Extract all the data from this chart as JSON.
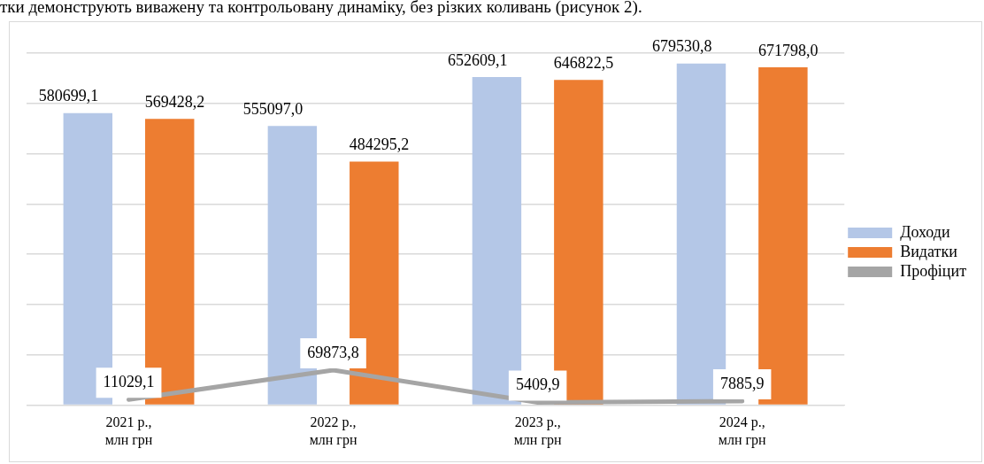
{
  "chart_data": {
    "type": "bar",
    "annotations": [
      "тки демонструють виважену та контрольовану динаміку, без різких коливань (рисунок 2)."
    ],
    "categories": [
      "2021 р.,\nмлн грн",
      "2022 р.,\nмлн грн",
      "2023 р.,\nмлн грн",
      "2024 р.,\nмлн грн"
    ],
    "series": [
      {
        "name": "Доходи",
        "color": "#b4c7e7",
        "values": [
          580699.1,
          555097.0,
          652609.1,
          679530.8
        ],
        "value_labels": [
          "580699,1",
          "555097,0",
          "652609,1",
          "679530,8"
        ]
      },
      {
        "name": "Видатки",
        "color": "#ed7d31",
        "values": [
          569428.2,
          484295.2,
          646822.5,
          671798.0
        ],
        "value_labels": [
          "569428,2",
          "484295,2",
          "646822,5",
          "671798,0"
        ]
      },
      {
        "name": "Профіцит",
        "type": "line",
        "color": "#a5a5a5",
        "values": [
          11029.1,
          69873.8,
          5409.9,
          7885.9
        ],
        "value_labels": [
          "11029,1",
          "69873,8",
          "5409,9",
          "7885,9"
        ]
      }
    ],
    "ylim": [
      0,
      700000
    ],
    "yticks": [
      {
        "value": 0,
        "label": null
      },
      {
        "value": 100000,
        "label": null
      },
      {
        "value": 200000,
        "label": null
      },
      {
        "value": 300000,
        "label": null
      },
      {
        "value": 400000,
        "label": null
      },
      {
        "value": 500000,
        "label": null
      },
      {
        "value": 600000,
        "label": null
      },
      {
        "value": 700000,
        "label": null
      }
    ],
    "grid": "y",
    "tick_labels": "x",
    "legend": "right",
    "marker": "none"
  }
}
